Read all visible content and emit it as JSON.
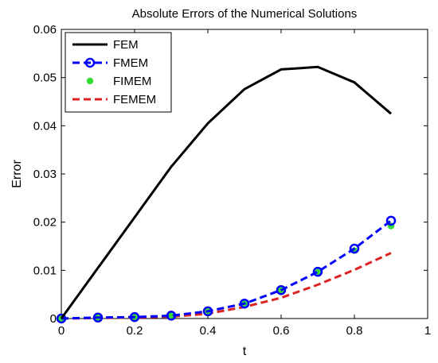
{
  "chart_data": {
    "type": "line",
    "title": "Absolute Errors of the Numerical Solutions",
    "xlabel": "t",
    "ylabel": "Error",
    "xlim": [
      0,
      1
    ],
    "ylim": [
      0,
      0.06
    ],
    "xticks": [
      "0",
      "0.2",
      "0.4",
      "0.6",
      "0.8",
      "1"
    ],
    "yticks": [
      "0",
      "0.01",
      "0.02",
      "0.03",
      "0.04",
      "0.05",
      "0.06"
    ],
    "grid": false,
    "legend_position": "top-left",
    "x": [
      0,
      0.1,
      0.2,
      0.3,
      0.4,
      0.5,
      0.6,
      0.7,
      0.8,
      0.9
    ],
    "series": [
      {
        "name": "FEM",
        "style": "solid",
        "marker": "none",
        "color": "#000000",
        "values": [
          0,
          0.0105,
          0.021,
          0.0315,
          0.0405,
          0.0476,
          0.0517,
          0.0522,
          0.049,
          0.0425
        ]
      },
      {
        "name": "FMEM",
        "style": "dashed",
        "marker": "circle",
        "color": "#0000ff",
        "values": [
          0,
          0.0002,
          0.0003,
          0.0006,
          0.0015,
          0.0031,
          0.0059,
          0.0097,
          0.0145,
          0.0203
        ]
      },
      {
        "name": "FIMEM",
        "style": "none",
        "marker": "dot",
        "color": "#33dd33",
        "values": [
          0,
          0.0002,
          0.0003,
          0.0006,
          0.0014,
          0.0031,
          0.0058,
          0.0096,
          0.0141,
          0.0192
        ]
      },
      {
        "name": "FEMEM",
        "style": "dashed",
        "marker": "none",
        "color": "#dd2222",
        "values": [
          0,
          0.0001,
          0.0002,
          0.0004,
          0.001,
          0.0024,
          0.0043,
          0.007,
          0.0101,
          0.0136
        ]
      }
    ]
  }
}
